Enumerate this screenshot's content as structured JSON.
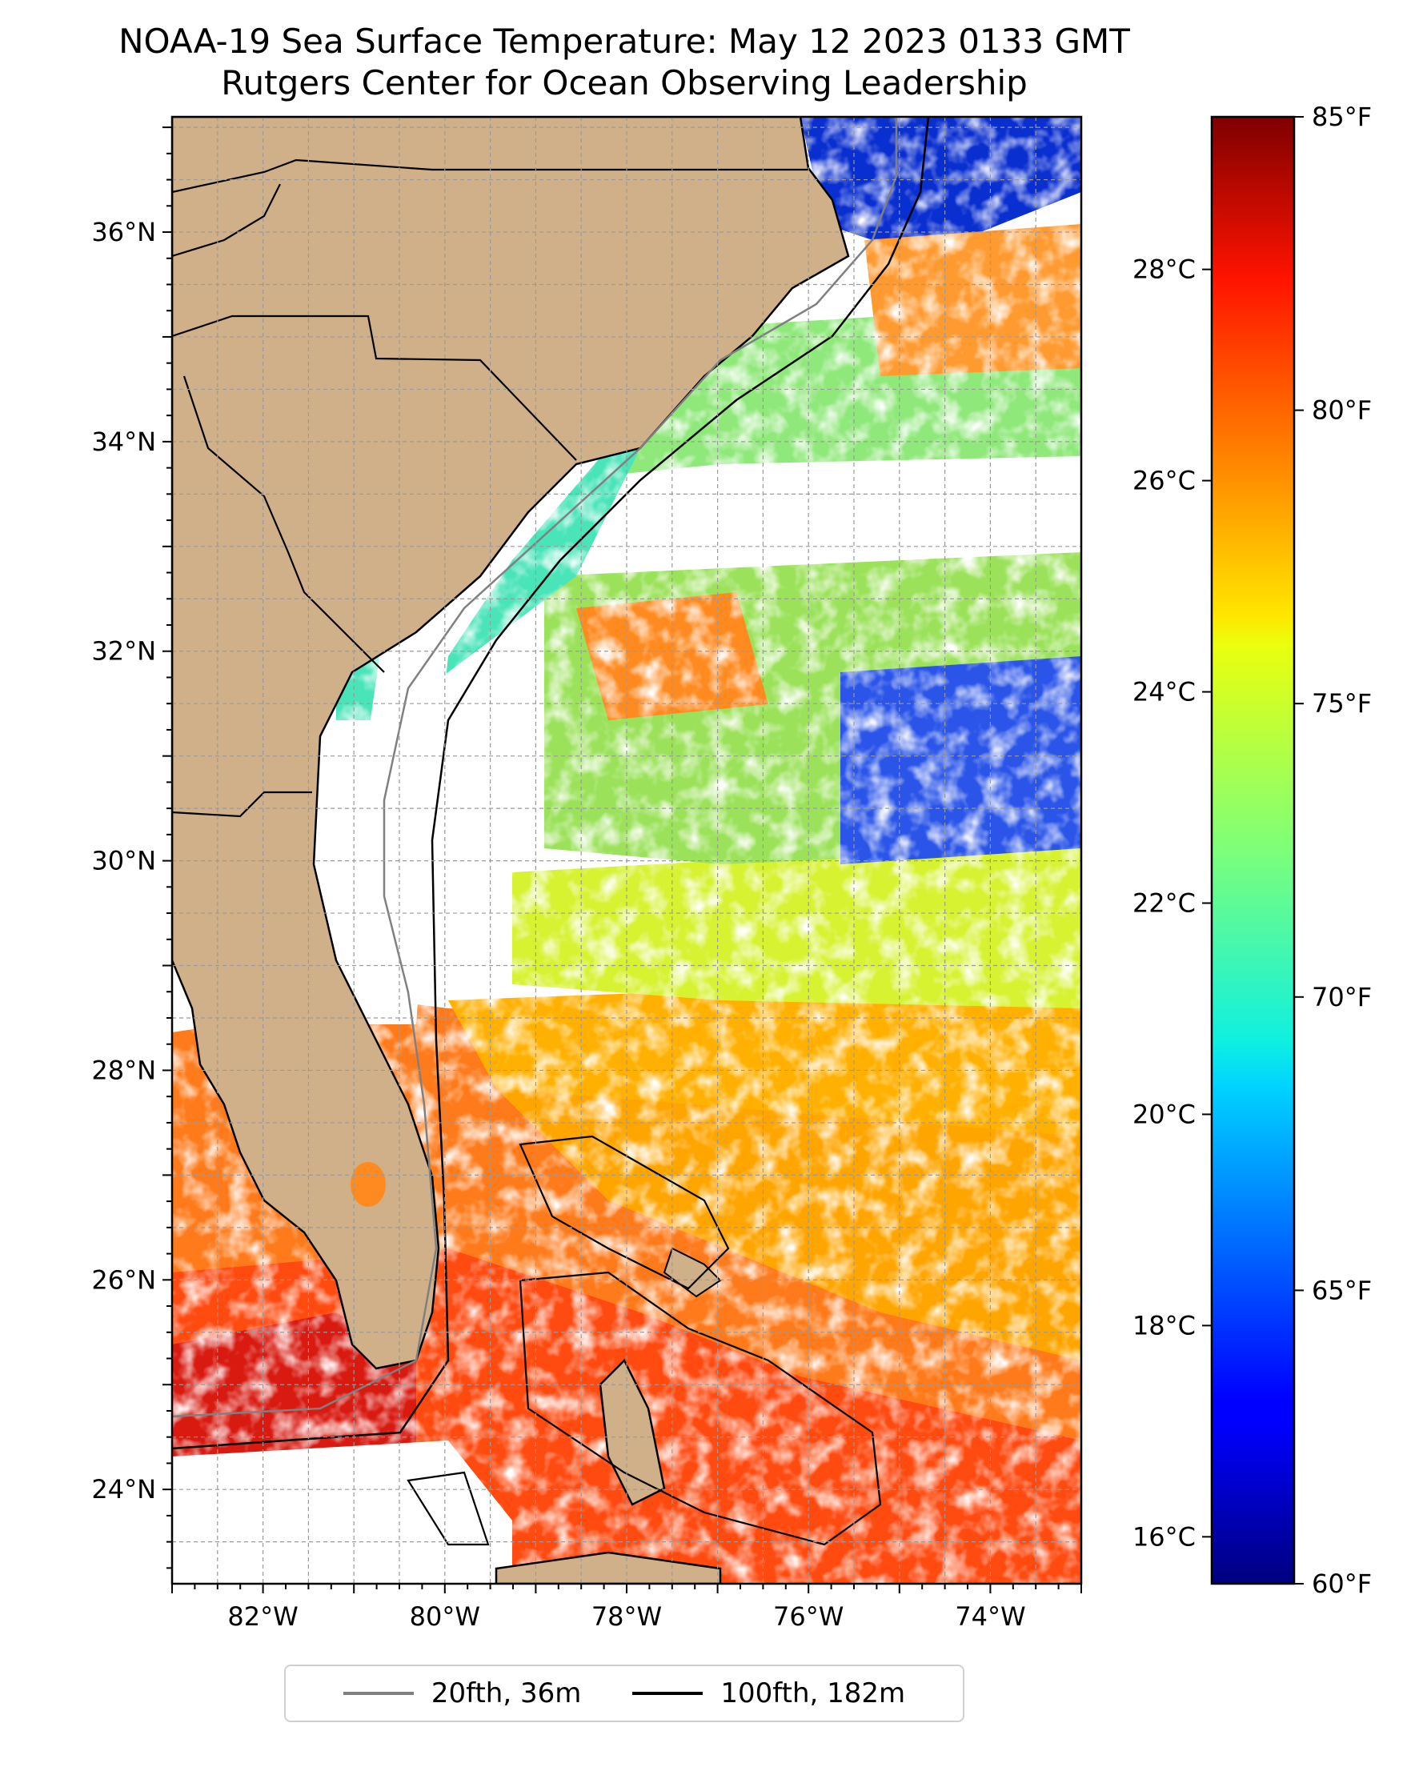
{
  "title": {
    "line1": "NOAA-19 Sea Surface Temperature: May 12 2023 0133 GMT",
    "line2": "Rutgers Center for Ocean Observing Leadership"
  },
  "map": {
    "lon_range": [
      -83,
      -73
    ],
    "lat_range": [
      23.1,
      37.1
    ],
    "lon_ticks": [
      {
        "value": -82,
        "label": "82°W"
      },
      {
        "value": -80,
        "label": "80°W"
      },
      {
        "value": -78,
        "label": "78°W"
      },
      {
        "value": -76,
        "label": "76°W"
      },
      {
        "value": -74,
        "label": "74°W"
      }
    ],
    "lat_ticks": [
      {
        "value": 36,
        "label": "36°N"
      },
      {
        "value": 34,
        "label": "34°N"
      },
      {
        "value": 32,
        "label": "32°N"
      },
      {
        "value": 30,
        "label": "30°N"
      },
      {
        "value": 28,
        "label": "28°N"
      },
      {
        "value": 26,
        "label": "26°N"
      },
      {
        "value": 24,
        "label": "24°N"
      }
    ],
    "gridlines": true,
    "land_color": "#cfb088",
    "lake_color": "#9db9e0"
  },
  "colorbar": {
    "colormap": "jet",
    "range_f": [
      60,
      85
    ],
    "fahrenheit_ticks": [
      {
        "value": 85,
        "label": "85°F"
      },
      {
        "value": 80,
        "label": "80°F"
      },
      {
        "value": 75,
        "label": "75°F"
      },
      {
        "value": 70,
        "label": "70°F"
      },
      {
        "value": 65,
        "label": "65°F"
      },
      {
        "value": 60,
        "label": "60°F"
      }
    ],
    "celsius_ticks": [
      {
        "value": 28,
        "label": "28°C"
      },
      {
        "value": 26,
        "label": "26°C"
      },
      {
        "value": 24,
        "label": "24°C"
      },
      {
        "value": 22,
        "label": "22°C"
      },
      {
        "value": 20,
        "label": "20°C"
      },
      {
        "value": 18,
        "label": "18°C"
      },
      {
        "value": 16,
        "label": "16°C"
      }
    ]
  },
  "legend": {
    "items": [
      {
        "label": "20fth, 36m",
        "color": "#808080"
      },
      {
        "label": "100fth, 182m",
        "color": "#000000"
      }
    ]
  }
}
